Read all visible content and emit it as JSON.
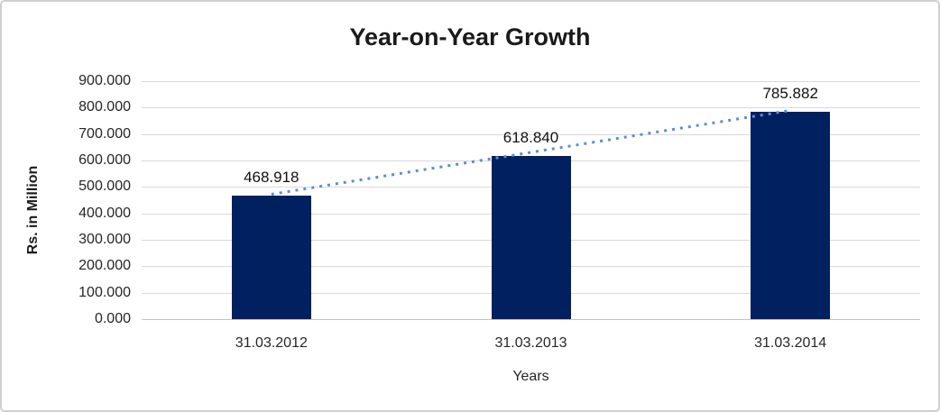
{
  "chart_data": {
    "type": "bar",
    "title": "Year-on-Year Growth",
    "xlabel": "Years",
    "ylabel": "Rs. in Million",
    "categories": [
      "31.03.2012",
      "31.03.2013",
      "31.03.2014"
    ],
    "values": [
      468.918,
      618.84,
      785.882
    ],
    "value_labels": [
      "468.918",
      "618.840",
      "785.882"
    ],
    "ylim": [
      0,
      900
    ],
    "y_tick_step": 100,
    "y_ticks": [
      {
        "value": 900,
        "label": "900.000"
      },
      {
        "value": 800,
        "label": "800.000"
      },
      {
        "value": 700,
        "label": "700.000"
      },
      {
        "value": 600,
        "label": "600.000"
      },
      {
        "value": 500,
        "label": "500.000"
      },
      {
        "value": 400,
        "label": "400.000"
      },
      {
        "value": 300,
        "label": "300.000"
      },
      {
        "value": 200,
        "label": "200.000"
      },
      {
        "value": 100,
        "label": "100.000"
      },
      {
        "value": 0,
        "label": "0.000"
      }
    ],
    "grid": "horizontal",
    "legend_position": "none",
    "bar_color": "#002060",
    "trendline": {
      "style": "dotted",
      "color": "#5b8ed5",
      "from_index": 0,
      "to_index": 2
    },
    "gridline_color": "#d9d9d9",
    "axis_line_color": "#c3c3c3",
    "text_color": "#262626"
  }
}
